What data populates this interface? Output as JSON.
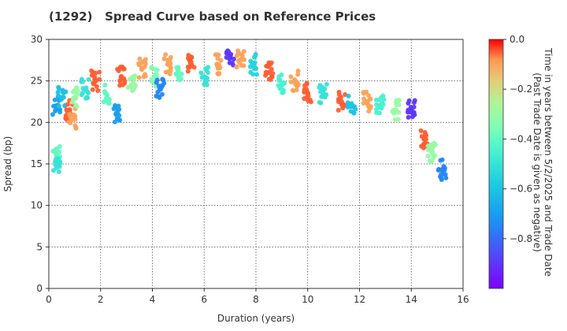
{
  "chart_data": {
    "type": "scatter",
    "title": "(1292)   Spread Curve based on Reference Prices",
    "xlabel": "Duration (years)",
    "ylabel": "Spread (bp)",
    "xlim": [
      0,
      16
    ],
    "ylim": [
      0,
      30
    ],
    "x_ticks": [
      0,
      2,
      4,
      6,
      8,
      10,
      12,
      14,
      16
    ],
    "y_ticks": [
      0,
      5,
      10,
      15,
      20,
      25,
      30
    ],
    "grid": true,
    "colorbar": {
      "label_line1": "Time in years between 5/2/2025 and Trade Date",
      "label_line2": "(Past Trade Date is given as negative)",
      "range": [
        -1.0,
        0.0
      ],
      "ticks": [
        0.0,
        -0.2,
        -0.4,
        -0.6,
        -0.8
      ],
      "tick_labels": [
        "0.0",
        "−0.2",
        "−0.4",
        "−0.6",
        "−0.8"
      ],
      "colormap": "rainbow"
    },
    "series": [
      {
        "name": "clusters",
        "points": [
          {
            "x": 0.3,
            "y": 22.0,
            "t": -0.7
          },
          {
            "x": 0.3,
            "y": 16.0,
            "t": -0.4
          },
          {
            "x": 0.3,
            "y": 15.0,
            "t": -0.5
          },
          {
            "x": 0.5,
            "y": 23.0,
            "t": -0.6
          },
          {
            "x": 0.8,
            "y": 21.5,
            "t": -0.05
          },
          {
            "x": 0.9,
            "y": 20.5,
            "t": -0.1
          },
          {
            "x": 1.0,
            "y": 23.0,
            "t": -0.3
          },
          {
            "x": 1.4,
            "y": 24.0,
            "t": -0.5
          },
          {
            "x": 1.8,
            "y": 25.0,
            "t": -0.05
          },
          {
            "x": 2.2,
            "y": 23.5,
            "t": -0.4
          },
          {
            "x": 2.6,
            "y": 21.0,
            "t": -0.7
          },
          {
            "x": 2.8,
            "y": 25.5,
            "t": -0.05
          },
          {
            "x": 3.2,
            "y": 24.5,
            "t": -0.3
          },
          {
            "x": 3.6,
            "y": 26.5,
            "t": -0.1
          },
          {
            "x": 4.1,
            "y": 25.5,
            "t": -0.35
          },
          {
            "x": 4.3,
            "y": 24.0,
            "t": -0.75
          },
          {
            "x": 4.6,
            "y": 27.0,
            "t": -0.1
          },
          {
            "x": 5.0,
            "y": 26.0,
            "t": -0.4
          },
          {
            "x": 5.5,
            "y": 27.0,
            "t": -0.05
          },
          {
            "x": 6.0,
            "y": 25.5,
            "t": -0.5
          },
          {
            "x": 6.5,
            "y": 27.0,
            "t": -0.1
          },
          {
            "x": 7.0,
            "y": 28.0,
            "t": -0.9
          },
          {
            "x": 7.4,
            "y": 27.5,
            "t": -0.1
          },
          {
            "x": 7.9,
            "y": 27.0,
            "t": -0.55
          },
          {
            "x": 8.5,
            "y": 26.0,
            "t": -0.05
          },
          {
            "x": 9.0,
            "y": 24.5,
            "t": -0.45
          },
          {
            "x": 9.5,
            "y": 25.0,
            "t": -0.1
          },
          {
            "x": 10.0,
            "y": 23.5,
            "t": -0.05
          },
          {
            "x": 10.6,
            "y": 23.5,
            "t": -0.5
          },
          {
            "x": 11.3,
            "y": 22.5,
            "t": -0.05
          },
          {
            "x": 11.7,
            "y": 22.0,
            "t": -0.6
          },
          {
            "x": 12.3,
            "y": 22.5,
            "t": -0.1
          },
          {
            "x": 12.8,
            "y": 22.0,
            "t": -0.45
          },
          {
            "x": 13.4,
            "y": 21.5,
            "t": -0.3
          },
          {
            "x": 14.0,
            "y": 21.5,
            "t": -0.9
          },
          {
            "x": 14.5,
            "y": 18.0,
            "t": -0.05
          },
          {
            "x": 14.8,
            "y": 16.5,
            "t": -0.3
          },
          {
            "x": 15.2,
            "y": 14.3,
            "t": -0.75
          }
        ]
      }
    ]
  }
}
